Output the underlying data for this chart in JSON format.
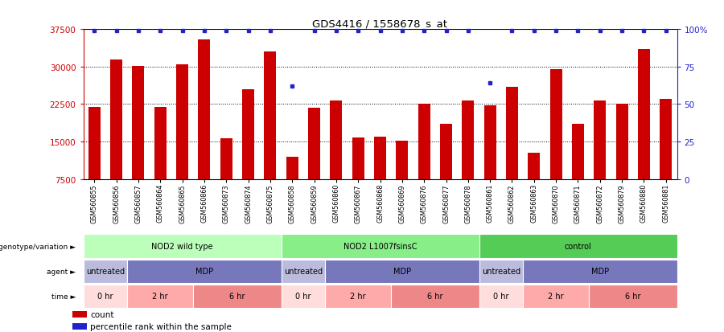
{
  "title": "GDS4416 / 1558678_s_at",
  "samples": [
    "GSM560855",
    "GSM560856",
    "GSM560857",
    "GSM560864",
    "GSM560865",
    "GSM560866",
    "GSM560873",
    "GSM560874",
    "GSM560875",
    "GSM560858",
    "GSM560859",
    "GSM560860",
    "GSM560867",
    "GSM560868",
    "GSM560869",
    "GSM560876",
    "GSM560877",
    "GSM560878",
    "GSM560861",
    "GSM560862",
    "GSM560863",
    "GSM560870",
    "GSM560871",
    "GSM560872",
    "GSM560879",
    "GSM560880",
    "GSM560881"
  ],
  "bar_values": [
    22000,
    31500,
    30200,
    22000,
    30500,
    35500,
    15700,
    25500,
    33000,
    12000,
    21800,
    23200,
    15800,
    16000,
    15200,
    22500,
    18500,
    23200,
    22200,
    26000,
    12800,
    29500,
    18500,
    23200,
    22500,
    33500,
    23500
  ],
  "percentile_values": [
    99,
    99,
    99,
    99,
    99,
    99,
    99,
    99,
    99,
    62,
    99,
    99,
    99,
    99,
    99,
    99,
    99,
    99,
    64,
    99,
    99,
    99,
    99,
    99,
    99,
    99,
    99
  ],
  "bar_color": "#cc0000",
  "dot_color": "#2222cc",
  "ymin": 7500,
  "ymax": 37500,
  "yticks": [
    7500,
    15000,
    22500,
    30000,
    37500
  ],
  "y2ticks": [
    0,
    25,
    50,
    75,
    100
  ],
  "y2labels": [
    "0",
    "25",
    "50",
    "75",
    "100%"
  ],
  "grid_values": [
    15000,
    22500,
    30000
  ],
  "genotype_groups": [
    {
      "label": "NOD2 wild type",
      "start": 0,
      "end": 9,
      "color": "#bbffbb"
    },
    {
      "label": "NOD2 L1007fsinsC",
      "start": 9,
      "end": 18,
      "color": "#88ee88"
    },
    {
      "label": "control",
      "start": 18,
      "end": 27,
      "color": "#55cc55"
    }
  ],
  "agent_groups": [
    {
      "label": "untreated",
      "start": 0,
      "end": 2,
      "color": "#bbbbdd"
    },
    {
      "label": "MDP",
      "start": 2,
      "end": 9,
      "color": "#7777bb"
    },
    {
      "label": "untreated",
      "start": 9,
      "end": 11,
      "color": "#bbbbdd"
    },
    {
      "label": "MDP",
      "start": 11,
      "end": 18,
      "color": "#7777bb"
    },
    {
      "label": "untreated",
      "start": 18,
      "end": 20,
      "color": "#bbbbdd"
    },
    {
      "label": "MDP",
      "start": 20,
      "end": 27,
      "color": "#7777bb"
    }
  ],
  "time_groups": [
    {
      "label": "0 hr",
      "start": 0,
      "end": 2,
      "color": "#ffdddd"
    },
    {
      "label": "2 hr",
      "start": 2,
      "end": 5,
      "color": "#ffaaaa"
    },
    {
      "label": "6 hr",
      "start": 5,
      "end": 9,
      "color": "#ee8888"
    },
    {
      "label": "0 hr",
      "start": 9,
      "end": 11,
      "color": "#ffdddd"
    },
    {
      "label": "2 hr",
      "start": 11,
      "end": 14,
      "color": "#ffaaaa"
    },
    {
      "label": "6 hr",
      "start": 14,
      "end": 18,
      "color": "#ee8888"
    },
    {
      "label": "0 hr",
      "start": 18,
      "end": 20,
      "color": "#ffdddd"
    },
    {
      "label": "2 hr",
      "start": 20,
      "end": 23,
      "color": "#ffaaaa"
    },
    {
      "label": "6 hr",
      "start": 23,
      "end": 27,
      "color": "#ee8888"
    }
  ],
  "row_labels": [
    "genotype/variation",
    "agent",
    "time"
  ],
  "legend_items": [
    {
      "color": "#cc0000",
      "label": "count"
    },
    {
      "color": "#2222cc",
      "label": "percentile rank within the sample"
    }
  ],
  "bg_color": "#ffffff"
}
